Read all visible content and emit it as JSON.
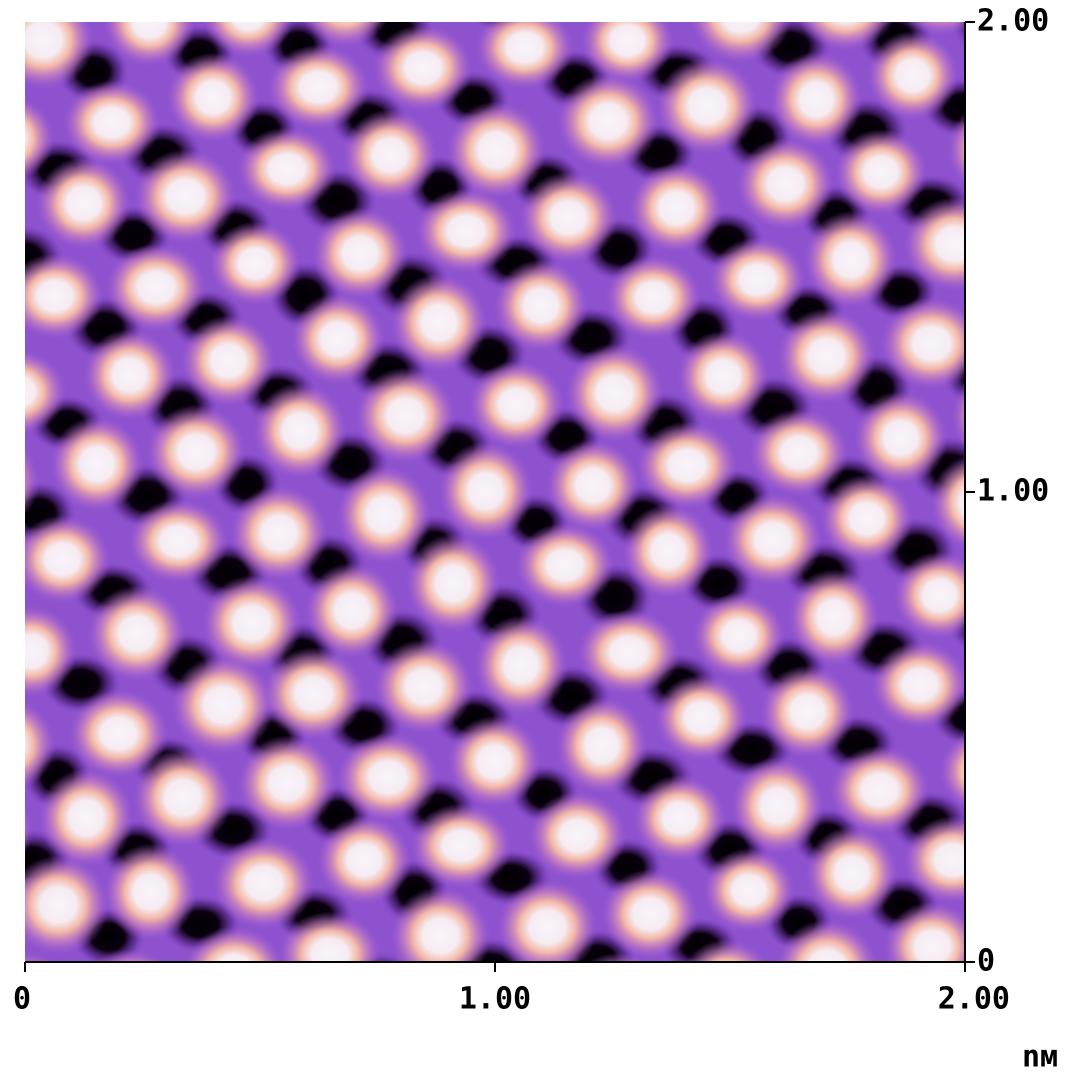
{
  "chart_data": {
    "type": "image",
    "xlim": [
      0,
      2
    ],
    "ylim": [
      0,
      2
    ],
    "xticks": [
      0,
      {
        "value": 1,
        "label": "1.00"
      },
      {
        "value": 2,
        "label": "2.00"
      }
    ],
    "yticks": [
      0,
      {
        "value": 1,
        "label": "1.00"
      },
      {
        "value": 2,
        "label": "2.00"
      }
    ],
    "x_unit": "nм"
  }
}
